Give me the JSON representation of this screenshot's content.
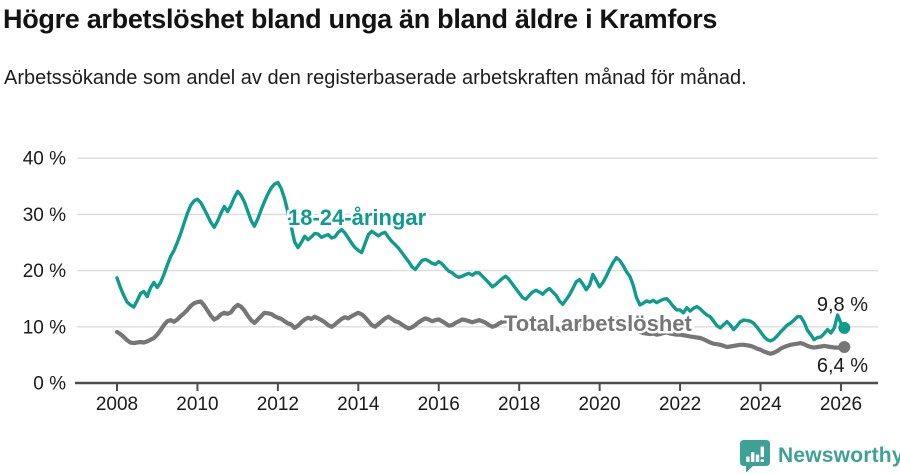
{
  "header": {
    "title": "Högre arbetslöshet bland unga än bland äldre i Kramfors",
    "subtitle": "Arbetssökande som andel av den registerbaserade arbetskraften månad för månad."
  },
  "footer": {
    "brand": "Newsworthy"
  },
  "colors": {
    "youth_line": "#0f9b8e",
    "total_line": "#767676",
    "gridline": "#dcdcdc",
    "axis": "#4d4d4d",
    "text": "#1a1a1a",
    "logo": "#3ea195"
  },
  "chart_data": {
    "type": "line",
    "title": "Högre arbetslöshet bland unga än bland äldre i Kramfors",
    "subtitle": "Arbetssökande som andel av den registerbaserade arbetskraften månad för månad.",
    "x_start": 2008,
    "x_step_months": 1,
    "x_ticks": [
      2008,
      2010,
      2012,
      2014,
      2016,
      2018,
      2020,
      2022,
      2024,
      2026
    ],
    "ylim": [
      0,
      40
    ],
    "grid": true,
    "y_ticks": [
      {
        "value": 0,
        "label": "0 %"
      },
      {
        "value": 10,
        "label": "10 %"
      },
      {
        "value": 20,
        "label": "20 %"
      },
      {
        "value": 30,
        "label": "30 %"
      },
      {
        "value": 40,
        "label": "40 %"
      }
    ],
    "series": [
      {
        "id": "youth",
        "name": "18-24-åringar",
        "color": "#0f9b8e",
        "end_label": "9,8 %",
        "end_value": 9.8,
        "values": [
          18.7,
          17.0,
          15.6,
          14.4,
          13.9,
          13.5,
          14.6,
          15.9,
          16.3,
          15.4,
          16.9,
          17.9,
          17.0,
          17.9,
          19.3,
          21.0,
          22.5,
          23.6,
          25.0,
          26.6,
          28.4,
          30.2,
          31.6,
          32.4,
          32.7,
          32.1,
          31.0,
          29.8,
          28.6,
          27.7,
          28.8,
          30.2,
          31.4,
          30.5,
          31.6,
          33.0,
          34.1,
          33.4,
          32.2,
          30.6,
          28.9,
          27.9,
          29.2,
          30.8,
          32.3,
          33.6,
          34.7,
          35.4,
          35.7,
          34.6,
          32.8,
          30.4,
          27.8,
          25.1,
          24.1,
          25.0,
          26.1,
          25.5,
          26.0,
          26.6,
          26.5,
          25.9,
          26.2,
          26.4,
          25.8,
          26.0,
          26.8,
          27.3,
          26.7,
          25.8,
          24.9,
          24.1,
          23.6,
          23.2,
          24.8,
          26.4,
          27.0,
          26.6,
          26.2,
          26.6,
          26.8,
          25.9,
          25.2,
          24.6,
          24.0,
          23.2,
          22.4,
          21.6,
          20.7,
          20.2,
          21.0,
          21.8,
          22.0,
          21.7,
          21.3,
          21.1,
          21.6,
          21.2,
          20.5,
          19.9,
          19.6,
          19.1,
          18.8,
          19.0,
          19.3,
          19.5,
          19.2,
          19.6,
          19.6,
          19.0,
          18.4,
          17.8,
          17.1,
          17.5,
          18.1,
          18.6,
          19.0,
          18.4,
          17.6,
          16.8,
          16.0,
          15.2,
          14.9,
          15.6,
          16.2,
          16.5,
          16.2,
          15.8,
          16.4,
          16.8,
          16.2,
          15.6,
          14.6,
          14.0,
          14.8,
          15.7,
          16.8,
          18.0,
          18.4,
          17.6,
          16.6,
          17.4,
          19.3,
          18.2,
          17.1,
          17.9,
          19.0,
          20.3,
          21.4,
          22.3,
          21.8,
          20.9,
          19.8,
          19.0,
          17.4,
          15.2,
          13.9,
          14.2,
          14.6,
          14.4,
          14.7,
          14.3,
          14.6,
          14.9,
          15.0,
          14.4,
          13.6,
          13.0,
          13.0,
          12.5,
          13.4,
          12.8,
          13.3,
          13.6,
          13.2,
          12.6,
          12.1,
          11.8,
          11.0,
          10.2,
          9.8,
          10.4,
          10.9,
          10.3,
          9.5,
          10.2,
          10.9,
          11.2,
          11.1,
          11.0,
          10.6,
          9.9,
          9.1,
          8.3,
          7.7,
          7.5,
          7.8,
          8.4,
          9.1,
          9.7,
          10.3,
          10.7,
          11.2,
          11.8,
          11.8,
          10.8,
          9.4,
          8.6,
          7.7,
          8.1,
          8.2,
          8.8,
          9.5,
          8.9,
          9.8,
          12.1,
          10.6,
          9.8
        ]
      },
      {
        "id": "total",
        "name": "Total arbetslöshet",
        "color": "#767676",
        "end_label": "6,4 %",
        "end_value": 6.4,
        "values": [
          9.1,
          8.7,
          8.2,
          7.6,
          7.2,
          7.1,
          7.2,
          7.3,
          7.2,
          7.4,
          7.7,
          8.0,
          8.6,
          9.4,
          10.3,
          11.0,
          11.2,
          10.9,
          11.3,
          11.9,
          12.4,
          13.0,
          13.7,
          14.2,
          14.4,
          14.5,
          13.8,
          12.9,
          12.0,
          11.3,
          11.6,
          12.2,
          12.5,
          12.3,
          12.6,
          13.4,
          13.9,
          13.6,
          12.9,
          12.0,
          11.2,
          10.7,
          11.3,
          11.9,
          12.5,
          12.4,
          12.3,
          11.9,
          11.6,
          11.4,
          11.0,
          10.6,
          10.4,
          9.8,
          10.2,
          10.8,
          11.3,
          11.6,
          11.4,
          11.8,
          11.5,
          11.2,
          10.8,
          10.3,
          10.0,
          10.4,
          10.9,
          11.4,
          11.7,
          11.5,
          11.9,
          12.2,
          12.5,
          12.2,
          11.7,
          11.0,
          10.3,
          10.0,
          10.5,
          11.0,
          11.5,
          11.8,
          11.4,
          11.0,
          10.8,
          10.4,
          10.0,
          9.7,
          9.9,
          10.3,
          10.8,
          11.2,
          11.5,
          11.3,
          11.0,
          11.2,
          11.3,
          11.0,
          10.6,
          10.2,
          10.3,
          10.7,
          11.0,
          11.3,
          11.2,
          11.0,
          10.8,
          11.0,
          11.2,
          11.0,
          10.7,
          10.3,
          10.0,
          10.2,
          10.6,
          10.9,
          11.0,
          10.8,
          10.4,
          10.1,
          9.9,
          9.6,
          9.4,
          9.6,
          9.9,
          10.1,
          10.0,
          9.8,
          10.0,
          10.2,
          9.9,
          9.7,
          9.5,
          9.3,
          9.5,
          9.8,
          10.0,
          10.2,
          10.4,
          10.2,
          10.0,
          10.2,
          10.5,
          10.3,
          10.1,
          10.2,
          10.6,
          11.0,
          11.3,
          11.5,
          11.3,
          11.0,
          10.6,
          10.2,
          9.8,
          9.4,
          9.1,
          8.9,
          8.8,
          8.7,
          8.8,
          8.6,
          8.7,
          8.9,
          9.0,
          8.8,
          8.7,
          8.6,
          8.6,
          8.5,
          8.4,
          8.3,
          8.2,
          8.1,
          8.0,
          7.8,
          7.5,
          7.2,
          7.0,
          6.9,
          6.8,
          6.6,
          6.4,
          6.5,
          6.6,
          6.7,
          6.8,
          6.8,
          6.7,
          6.6,
          6.4,
          6.1,
          5.9,
          5.6,
          5.4,
          5.2,
          5.4,
          5.7,
          6.1,
          6.4,
          6.6,
          6.8,
          6.9,
          7.0,
          7.1,
          6.9,
          6.6,
          6.4,
          6.3,
          6.4,
          6.5,
          6.6,
          6.5,
          6.4,
          6.3,
          6.3,
          6.3,
          6.4
        ]
      }
    ]
  }
}
